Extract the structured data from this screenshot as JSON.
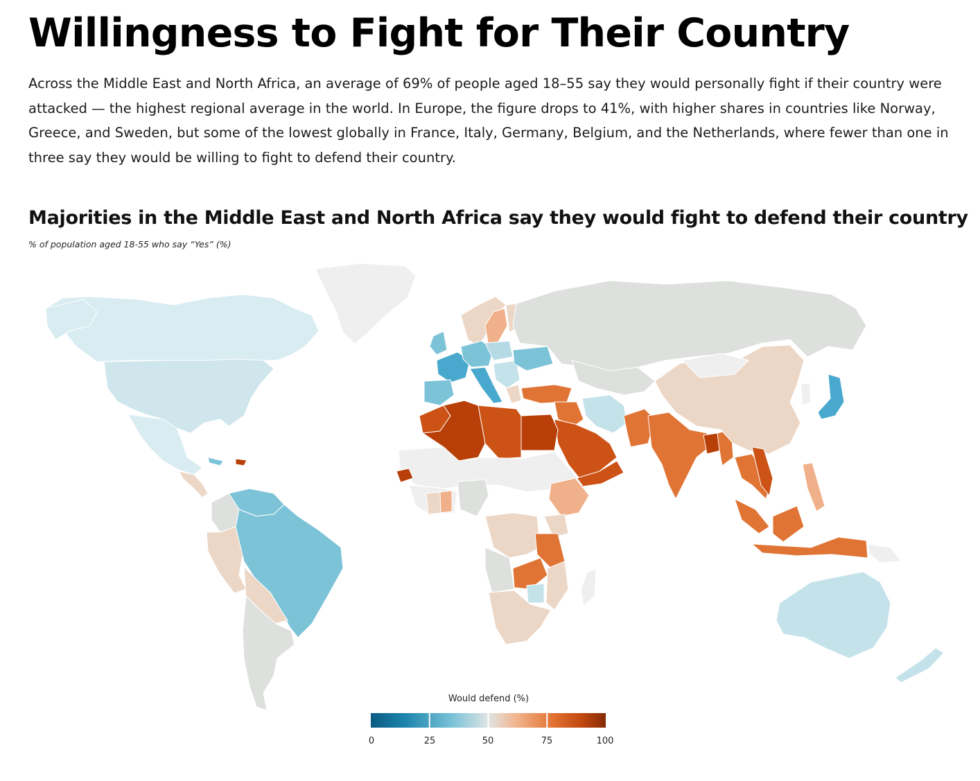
{
  "header": {
    "title": "Willingness to Fight for Their Country",
    "intro": "Across the Middle East and North Africa, an average of 69% of people aged 18–55 say they would personally fight if their country were attacked — the highest regional average in the world. In Europe, the figure drops to 41%, with higher shares in countries like Norway, Greece, and Sweden, but some of the lowest globally in France, Italy, Germany, Belgium, and the Netherlands, where fewer than one in three say they would be willing to fight to defend their country."
  },
  "chart": {
    "subtitle": "Majorities in the Middle East and North Africa say they would fight to defend their country",
    "note": "% of population aged 18-55 who say “Yes” (%)"
  },
  "legend": {
    "title": "Would defend (%)",
    "ticks": [
      "0",
      "25",
      "50",
      "75",
      "100"
    ],
    "colors": [
      "#0d5f86",
      "#2b8db3",
      "#7cc3d8",
      "#d7e6ea",
      "#f2b48c",
      "#e2763a",
      "#c24a12",
      "#8a2c05"
    ]
  },
  "map_colors": {
    "no_data": "#dde0dd",
    "no_data_light": "#efefef",
    "blue_strong": "#49a8cd",
    "blue_medium": "#7dc3d8",
    "blue_light": "#c4e2ea",
    "beige": "#ecd7c7",
    "peach": "#f0b089",
    "orange": "#e07434",
    "orange_dark": "#cc5216",
    "brown": "#b83f07"
  }
}
